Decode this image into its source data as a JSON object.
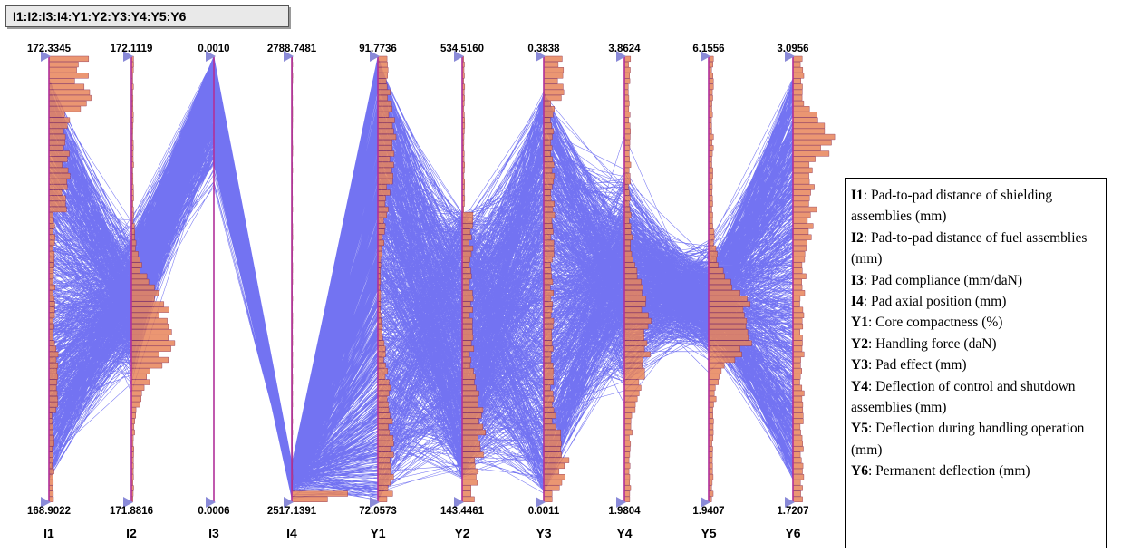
{
  "title": "I1:I2:I3:I4:Y1:Y2:Y3:Y4:Y5:Y6",
  "colors": {
    "lines": "#0000e8",
    "axis": "#b0309a",
    "histogram_fill": "#e8845a",
    "histogram_dark": "#8a2a4a",
    "marker": "#8a8ad8"
  },
  "chart_data": {
    "type": "parallel-coordinates",
    "axes": [
      {
        "name": "I1",
        "max": "172.3345",
        "min": "168.9022"
      },
      {
        "name": "I2",
        "max": "172.1119",
        "min": "171.8816"
      },
      {
        "name": "I3",
        "max": "0.0010",
        "min": "0.0006"
      },
      {
        "name": "I4",
        "max": "2788.7481",
        "min": "2517.1391"
      },
      {
        "name": "Y1",
        "max": "91.7736",
        "min": "72.0573"
      },
      {
        "name": "Y2",
        "max": "534.5160",
        "min": "143.4461"
      },
      {
        "name": "Y3",
        "max": "0.3838",
        "min": "0.0011"
      },
      {
        "name": "Y4",
        "max": "3.8624",
        "min": "1.9804"
      },
      {
        "name": "Y5",
        "max": "6.1556",
        "min": "1.9407"
      },
      {
        "name": "Y6",
        "max": "3.0956",
        "min": "1.7207"
      }
    ],
    "legend": [
      {
        "key": "I1",
        "text": ": Pad-to-pad distance of shielding assemblies (mm)"
      },
      {
        "key": "I2",
        "text": ": Pad-to-pad distance of fuel assemblies (mm)"
      },
      {
        "key": "I3",
        "text": ": Pad compliance (mm/daN)"
      },
      {
        "key": "I4",
        "text": ": Pad axial position (mm)"
      },
      {
        "key": "Y1",
        "text": ": Core compactness (%)"
      },
      {
        "key": "Y2",
        "text": ": Handling force (daN)"
      },
      {
        "key": "Y3",
        "text": ": Pad effect (mm)"
      },
      {
        "key": "Y4",
        "text": ": Deflection of control and shutdown assemblies (mm)"
      },
      {
        "key": "Y5",
        "text": ": Deflection during handling operation (mm)"
      },
      {
        "key": "Y6",
        "text": ": Permanent deflection (mm)"
      }
    ]
  }
}
